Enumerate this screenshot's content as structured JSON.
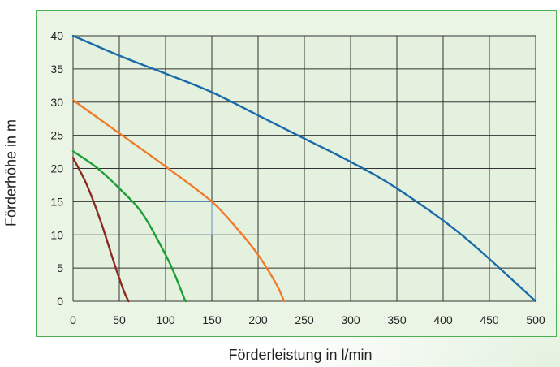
{
  "chart_data": {
    "type": "line",
    "title": "",
    "xlabel": "Förderleistung in l/min",
    "ylabel": "Förderhöhe in m",
    "xlim": [
      0,
      500
    ],
    "ylim": [
      0,
      40
    ],
    "xticks": [
      0,
      50,
      100,
      150,
      200,
      250,
      300,
      350,
      400,
      450,
      500
    ],
    "yticks": [
      0,
      5,
      10,
      15,
      20,
      25,
      30,
      35,
      40
    ],
    "grid": true,
    "legend": "none",
    "series": [
      {
        "color": "#1a6aa8",
        "points": [
          [
            0,
            40
          ],
          [
            50,
            37
          ],
          [
            100,
            34.3
          ],
          [
            150,
            31.5
          ],
          [
            200,
            28
          ],
          [
            250,
            24.5
          ],
          [
            300,
            21
          ],
          [
            350,
            17
          ],
          [
            420,
            10
          ],
          [
            500,
            0
          ]
        ]
      },
      {
        "color": "#f07a2a",
        "points": [
          [
            0,
            30.3
          ],
          [
            50,
            25.3
          ],
          [
            100,
            20.3
          ],
          [
            150,
            15
          ],
          [
            180,
            10.5
          ],
          [
            200,
            7
          ],
          [
            220,
            2.5
          ],
          [
            228,
            0
          ]
        ]
      },
      {
        "color": "#1e9e37",
        "points": [
          [
            0,
            22.6
          ],
          [
            25,
            20.2
          ],
          [
            50,
            17
          ],
          [
            75,
            13.2
          ],
          [
            100,
            7
          ],
          [
            110,
            4
          ],
          [
            120,
            0.5
          ],
          [
            122,
            0
          ]
        ]
      },
      {
        "color": "#8b2a1f",
        "points": [
          [
            0,
            21.6
          ],
          [
            15,
            17.5
          ],
          [
            30,
            12
          ],
          [
            45,
            5.5
          ],
          [
            55,
            1.5
          ],
          [
            60,
            0
          ]
        ]
      }
    ],
    "highlight_box": {
      "x": [
        100,
        150
      ],
      "y": [
        10,
        15
      ],
      "color": "#5b8fc4"
    }
  }
}
